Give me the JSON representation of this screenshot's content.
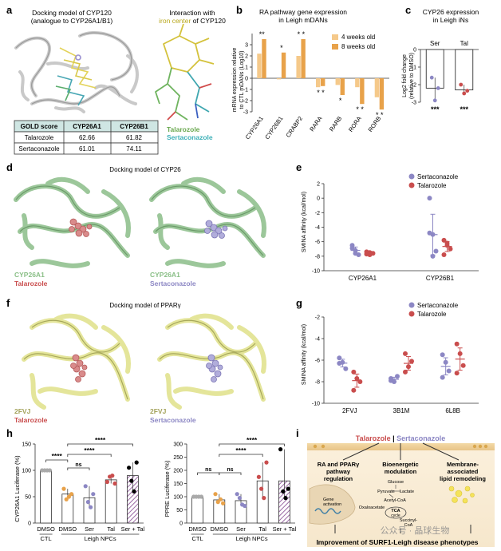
{
  "panels": {
    "a": {
      "letter": "a",
      "title_left_1": "Docking model of CYP120",
      "title_left_2": "(analogue to CYP26A1/B1)",
      "title_right_1": "Interaction with",
      "title_right_2a": "iron center",
      "title_right_2b": " of CYP120",
      "legend": [
        "Talarozole",
        "Sertaconazole"
      ],
      "table": {
        "headers": [
          "GOLD score",
          "CYP26A1",
          "CYP26B1"
        ],
        "rows": [
          [
            "Talarozole",
            "62.66",
            "61.82"
          ],
          [
            "Sertaconazole",
            "61.01",
            "74.11"
          ]
        ]
      }
    },
    "b": {
      "letter": "b",
      "title_1": "RA pathway gene expression",
      "title_2": "in Leigh mDANs",
      "ylabel_1": "mRNA expression relative",
      "ylabel_2": "to CTL mDANs (Log10)",
      "legend": [
        "4 weeks old",
        "8 weeks old"
      ]
    },
    "c": {
      "letter": "c",
      "title_1": "CYP26 expression",
      "title_2": "in Leigh iNs",
      "ylabel_1": "Log2 fold change",
      "ylabel_2": "(relative to DMSO)"
    },
    "d": {
      "letter": "d",
      "title": "Docking model of CYP26",
      "label_protein": "CYP26A1",
      "label_left_drug": "Talarozole",
      "label_right_drug": "Sertaconazole"
    },
    "e": {
      "letter": "e",
      "ylabel": "SMINA affinity (kcal/mol)",
      "legend": [
        "Sertaconazole",
        "Talarozole"
      ]
    },
    "f": {
      "letter": "f",
      "title": "Docking model of PPARγ",
      "label_protein": "2FVJ",
      "label_left_drug": "Talarozole",
      "label_right_drug": "Sertaconazole"
    },
    "g": {
      "letter": "g",
      "ylabel": "SMINA affinity (kcal/mol)",
      "legend": [
        "Sertaconazole",
        "Talarozole"
      ]
    },
    "h": {
      "letter": "h",
      "ylabel_left": "CYP26A1 Luciferase (%)",
      "ylabel_right": "PPRE Luciferase (%)",
      "sig": [
        "****",
        "ns",
        "****",
        "****"
      ],
      "sig_right": [
        "ns",
        "ns",
        "****",
        "****"
      ],
      "group_ctl": "CTL",
      "group_leigh": "Leigh NPCs"
    },
    "i": {
      "letter": "i",
      "drug_a": "Talarozole",
      "drug_sep": " | ",
      "drug_b": "Sertaconazole",
      "box1": [
        "RA and PPARγ",
        "pathway",
        "regulation"
      ],
      "box2": [
        "Bioenergetic",
        "modulation"
      ],
      "box3": [
        "Membrane-",
        "associated",
        "lipid remodeling"
      ],
      "metab": [
        "Glucose",
        "Pyruvate",
        "Lactate",
        "Acetyl-CoA",
        "Oxaloacetate",
        "TCA",
        "cycle",
        "Succinyl-",
        "CoA"
      ],
      "gene_activation": [
        "Gene",
        "activation"
      ],
      "bottom": "Improvement of SURF1-Leigh disease phenotypes",
      "watermark": "公众号 · 晶球生物"
    }
  },
  "chart_data": [
    {
      "panel": "b",
      "type": "bar",
      "title": "RA pathway gene expression in Leigh mDANs",
      "ylabel": "mRNA expression relative to CTL mDANs (Log10)",
      "ylim": [
        -3,
        4
      ],
      "yticks": [
        -3,
        -2,
        -1,
        0,
        1,
        2,
        3
      ],
      "categories": [
        "CYP26A1",
        "CYP26B1",
        "CRABP2",
        "RARA",
        "RARB",
        "RORA",
        "RORB"
      ],
      "series": [
        {
          "name": "4 weeks old",
          "color": "#f5c98a",
          "values": [
            2.2,
            -0.1,
            2.0,
            -0.8,
            -0.6,
            -0.8,
            -1.7
          ]
        },
        {
          "name": "8 weeks old",
          "color": "#e8a24a",
          "values": [
            3.5,
            2.3,
            3.5,
            -0.7,
            -1.5,
            -2.3,
            -2.8
          ]
        }
      ],
      "significance": [
        "**",
        "*",
        "* *",
        "* *",
        "*",
        "* *",
        "* *"
      ]
    },
    {
      "panel": "c",
      "type": "bar",
      "title": "CYP26 expression in Leigh iNs",
      "ylim": [
        -3,
        0
      ],
      "yticks": [
        -3,
        -2,
        -1,
        0
      ],
      "categories": [
        "Ser",
        "Tal"
      ],
      "values": [
        -2.2,
        -2.3
      ],
      "points": [
        [
          -1.6,
          -2.9,
          -2.2
        ],
        [
          -2.0,
          -2.5,
          -2.35
        ]
      ],
      "point_colors": [
        "#8c87c4",
        "#c94d4d"
      ],
      "significance": [
        "***",
        "***"
      ]
    },
    {
      "panel": "e",
      "type": "scatter",
      "ylabel": "SMINA affinity (kcal/mol)",
      "ylim": [
        -10,
        2
      ],
      "yticks": [
        -10,
        -8,
        -6,
        -4,
        -2,
        0,
        2
      ],
      "categories": [
        "CYP26A1",
        "CYP26B1"
      ],
      "series": [
        {
          "name": "Sertaconazole",
          "color": "#8c87c4",
          "values": [
            [
              -6.5,
              -7.2,
              -7.8,
              -6.9,
              -7.6
            ],
            [
              0.0,
              -5.0,
              -7.3,
              -4.8,
              -8.0
            ]
          ]
        },
        {
          "name": "Talarozole",
          "color": "#c94d4d",
          "values": [
            [
              -7.4,
              -7.8,
              -7.6,
              -7.7,
              -7.5
            ],
            [
              -5.8,
              -6.2,
              -7.0,
              -7.8,
              -6.5
            ]
          ]
        }
      ]
    },
    {
      "panel": "g",
      "type": "scatter",
      "ylabel": "SMINA affinity (kcal/mol)",
      "ylim": [
        -10,
        -2
      ],
      "yticks": [
        -10,
        -8,
        -6,
        -4,
        -2
      ],
      "categories": [
        "2FVJ",
        "3B1M",
        "6L8B"
      ],
      "series": [
        {
          "name": "Sertaconazole",
          "color": "#8c87c4",
          "values": [
            [
              -5.8,
              -6.2,
              -6.8,
              -6.3
            ],
            [
              -7.7,
              -8.0,
              -7.5,
              -7.9
            ],
            [
              -5.5,
              -6.2,
              -7.0,
              -7.6
            ]
          ]
        },
        {
          "name": "Talarozole",
          "color": "#c94d4d",
          "values": [
            [
              -7.1,
              -7.7,
              -8.0,
              -8.8
            ],
            [
              -5.4,
              -6.6,
              -6.1,
              -7.1
            ],
            [
              -4.5,
              -5.4,
              -6.5,
              -7.2
            ]
          ]
        }
      ]
    },
    {
      "panel": "h-left",
      "type": "bar",
      "ylabel": "CYP26A1 Luciferase (%)",
      "ylim": [
        0,
        150
      ],
      "yticks": [
        0,
        50,
        100,
        150
      ],
      "categories": [
        "DMSO",
        "DMSO",
        "Ser",
        "Tal",
        "Ser + Tal"
      ],
      "values": [
        100,
        55,
        48,
        82,
        90
      ],
      "points": [
        [
          100,
          100,
          100,
          100
        ],
        [
          65,
          45,
          50,
          55
        ],
        [
          70,
          40,
          30,
          55
        ],
        [
          78,
          88,
          90,
          75
        ],
        [
          105,
          80,
          60,
          115
        ]
      ],
      "colors": [
        "#aaaaaa",
        "#e8a24a",
        "#8c87c4",
        "#c94d4d",
        "#000000"
      ]
    },
    {
      "panel": "h-right",
      "type": "bar",
      "ylabel": "PPRE Luciferase (%)",
      "ylim": [
        0,
        300
      ],
      "yticks": [
        0,
        50,
        100,
        150,
        200,
        250,
        300
      ],
      "categories": [
        "DMSO",
        "DMSO",
        "Ser",
        "Tal",
        "Ser + Tal"
      ],
      "values": [
        100,
        88,
        85,
        160,
        160
      ],
      "points": [
        [
          100,
          100,
          100,
          100
        ],
        [
          110,
          80,
          90,
          75
        ],
        [
          110,
          95,
          70,
          65
        ],
        [
          175,
          130,
          95,
          230
        ],
        [
          280,
          120,
          95,
          130
        ]
      ],
      "colors": [
        "#aaaaaa",
        "#e8a24a",
        "#8c87c4",
        "#c94d4d",
        "#000000"
      ]
    }
  ]
}
